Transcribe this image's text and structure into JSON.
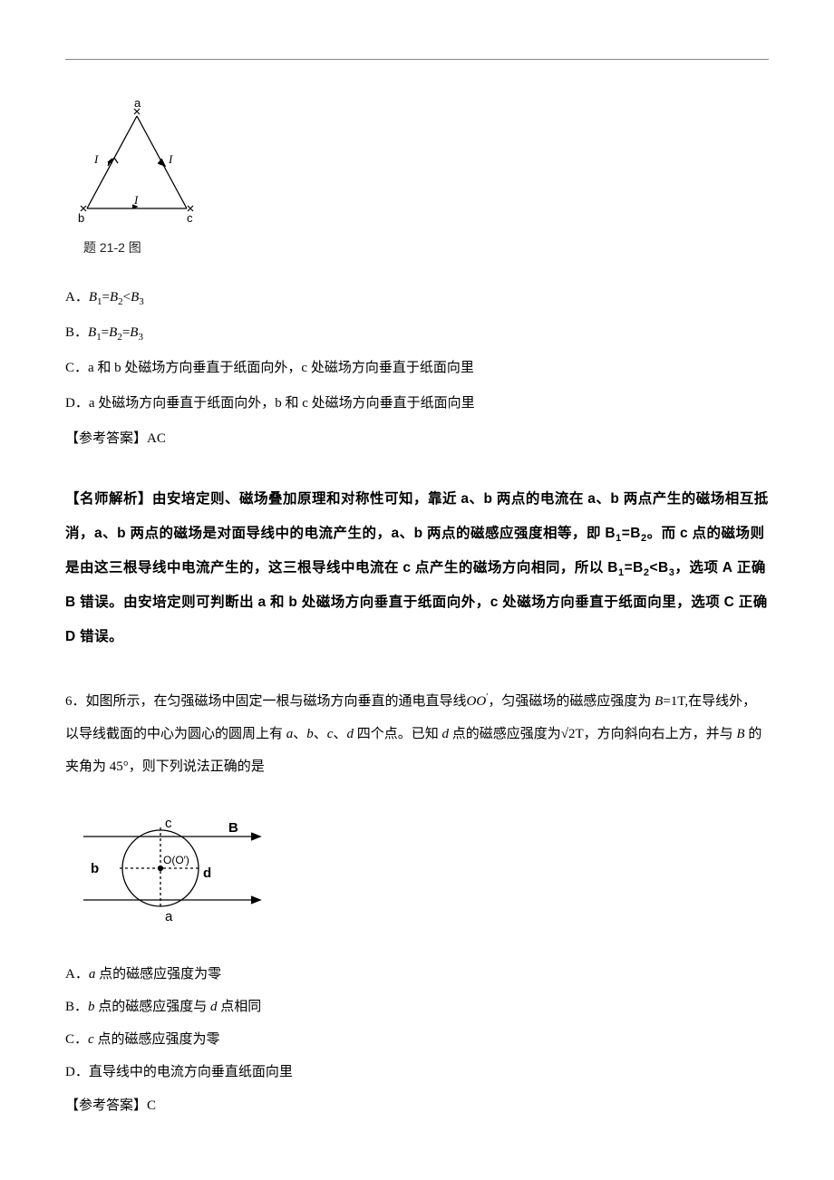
{
  "figure1": {
    "caption": "题 21-2 图",
    "labels": {
      "a": "a",
      "b": "b",
      "c": "c",
      "I": "I"
    },
    "stroke": "#000000",
    "stroke_width": 1.3
  },
  "q5_options": {
    "A_prefix": "A．",
    "A_body_html": "<span class=\"italic\">B</span><span class=\"sub\">1</span>=<span class=\"italic\">B</span><span class=\"sub\">2</span>&lt;<span class=\"italic\">B</span><span class=\"sub\">3</span>",
    "B_prefix": "B．",
    "B_body_html": "<span class=\"italic\">B</span><span class=\"sub\">1</span>=<span class=\"italic\">B</span><span class=\"sub\">2</span>=<span class=\"italic\">B</span><span class=\"sub\">3</span>",
    "C": "C．a 和 b 处磁场方向垂直于纸面向外，c 处磁场方向垂直于纸面向里",
    "D": "D．a 处磁场方向垂直于纸面向外，b 和 c 处磁场方向垂直于纸面向里"
  },
  "q5_answer": "【参考答案】AC",
  "q5_analysis_html": "【名师解析】由安培定则、磁场叠加原理和对称性可知，靠近 <span class=\"em\">a</span>、<span class=\"em\">b</span> 两点的电流在 <span class=\"em\">a</span>、<span class=\"em\">b</span> 两点产生的磁场相互抵消，<span class=\"em\">a</span>、<span class=\"em\">b</span> 两点的磁场是对面导线中的电流产生的，<span class=\"em\">a</span>、<span class=\"em\">b</span> 两点的磁感应强度相等，即 <span class=\"em italic\">B<span class=\"sub\">1</span>=B<span class=\"sub\">2</span></span>。而 <span class=\"em\">c</span> 点的磁场则是由这三根导线中电流产生的，这三根导线中电流在 <span class=\"em\">c</span> 点产生的磁场方向相同，所以 <span class=\"em italic\">B<span class=\"sub\">1</span>=B<span class=\"sub\">2</span>&lt;B<span class=\"sub\">3</span></span>，选项 <span class=\"em\">A</span> 正确 <span class=\"em\">B</span> 错误。由安培定则可判断出 <span class=\"em\">a</span> 和 <span class=\"em\">b</span> 处磁场方向垂直于纸面向外，<span class=\"em\">c</span> 处磁场方向垂直于纸面向里，选项 <span class=\"em\">C</span> 正确 <span class=\"em\">D</span> 错误。",
  "q6_stem_html": "6．如图所示，在匀强磁场中固定一根与磁场方向垂直的通电直导线<span class=\"italic\">OO</span><span style=\"vertical-align:super;font-size:10px\">′</span>，匀强磁场的磁感应强度为 <span class=\"italic\">B</span>=1T,在导线外，以导线截面的中心为圆心的圆周上有 <span class=\"italic\">a</span>、<span class=\"italic\">b</span>、<span class=\"italic\">c</span>、<span class=\"italic\">d</span> 四个点。已知 <span class=\"italic\">d</span> 点的磁感应强度为<span class=\"sqrt\">√2</span>T，方向斜向右上方，并与 <span class=\"italic\">B</span> 的夹角为 45°，则下列说法正确的是",
  "figure2": {
    "labels": {
      "a": "a",
      "b": "b",
      "c": "c",
      "d": "d",
      "B": "B",
      "O": "O(O′)"
    },
    "stroke": "#000000",
    "stroke_width": 1.3
  },
  "q6_options": {
    "A_html": "A．<span class=\"italic\">a</span> 点的磁感应强度为零",
    "B_html": "B．<span class=\"italic\">b</span> 点的磁感应强度与 <span class=\"italic\">d</span> 点相同",
    "C_html": "C．<span class=\"italic\">c</span> 点的磁感应强度为零",
    "D_html": "D．直导线中的电流方向垂直纸面向里"
  },
  "q6_answer": "【参考答案】C"
}
